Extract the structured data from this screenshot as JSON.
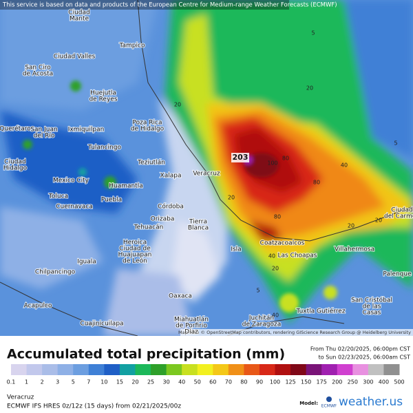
{
  "banner": "This service is based on data and products of the European Centre for Medium-range Weather Forecasts (ECMWF)",
  "map": {
    "cities": [
      [
        "Ciudad",
        "Mante"
      ],
      [
        "Tampico"
      ],
      [
        "Ciudad Valles"
      ],
      [
        "San Ciro",
        "de Acosta"
      ],
      [
        "Huejutla",
        "de Reyes"
      ],
      [
        "Poza Rica",
        "de Hidalgo"
      ],
      [
        "Querétaro"
      ],
      [
        "San Juan",
        "del Río"
      ],
      [
        "Ixmiquilpan"
      ],
      [
        "Tulancingo"
      ],
      [
        "Ciudad",
        "Hidalgo"
      ],
      [
        "Teziutlán"
      ],
      [
        "Xalapa"
      ],
      [
        "Mexico City"
      ],
      [
        "Huamantla"
      ],
      [
        "Veracruz"
      ],
      [
        "Toluca"
      ],
      [
        "Cuernavaca"
      ],
      [
        "Puebla"
      ],
      [
        "Córdoba"
      ],
      [
        "Orizaba"
      ],
      [
        "Tierra",
        "Blanca"
      ],
      [
        "Tehuacán"
      ],
      [
        "Heroica",
        "Ciudad de",
        "Huajuapan",
        "de León"
      ],
      [
        "Iguala"
      ],
      [
        "Chilpancingo"
      ],
      [
        "Acapulco"
      ],
      [
        "Oaxaca"
      ],
      [
        "Coatzacoalcos"
      ],
      [
        "Las Choapas"
      ],
      [
        "Villahermosa"
      ],
      [
        "Ciudad",
        "del Carmen"
      ],
      [
        "Palenque"
      ],
      [
        "San Cristóbal",
        "de las",
        "Casas"
      ],
      [
        "Tuxtla Gutiérrez"
      ],
      [
        "Juchitán",
        "de Zaragoza"
      ],
      [
        "Miahuatlán",
        "de Porfirio",
        "Díaz"
      ],
      [
        "Cuajinicuilapa"
      ],
      [
        "Isla"
      ]
    ],
    "contour_labels": [
      5,
      20,
      20,
      40,
      80,
      100,
      80,
      80,
      20,
      20,
      20,
      40,
      20,
      5,
      40,
      5
    ],
    "max_value": 203,
    "attribution": "Map data © OpenStreetMap contributors, rendering GIScience Research Group @ Heidelberg University"
  },
  "legend": {
    "title": "Accumulated total precipitation (mm)",
    "period_from": "From Thu 02/20/2025, 06:00pm CST",
    "period_to": "to Sun 02/23/2025, 06:00am CST",
    "labels": [
      0.1,
      1,
      2,
      3,
      5,
      7,
      10,
      15,
      20,
      25,
      30,
      40,
      50,
      60,
      70,
      80,
      90,
      100,
      125,
      150,
      175,
      200,
      250,
      300,
      400,
      500
    ],
    "colors": [
      "#d8d4ee",
      "#c2c8ec",
      "#aabde8",
      "#8eb0e6",
      "#6c9ee0",
      "#3f80d6",
      "#1f5fc6",
      "#12a0a2",
      "#1cb85a",
      "#2ea02a",
      "#7cc820",
      "#c8e020",
      "#f2f020",
      "#f4c818",
      "#f09018",
      "#e85818",
      "#d82818",
      "#b01010",
      "#800818",
      "#7a1478",
      "#a020b0",
      "#d040d0",
      "#e890e0",
      "#c0c0c0",
      "#909090"
    ]
  },
  "footer": {
    "region": "Veracruz",
    "model_run": "ECMWF IFS HRES 0z/12z (15 days) from 02/21/2025/00z",
    "model_label": "Model:",
    "model_logo": "ECMWF",
    "brand": "weather.us"
  }
}
